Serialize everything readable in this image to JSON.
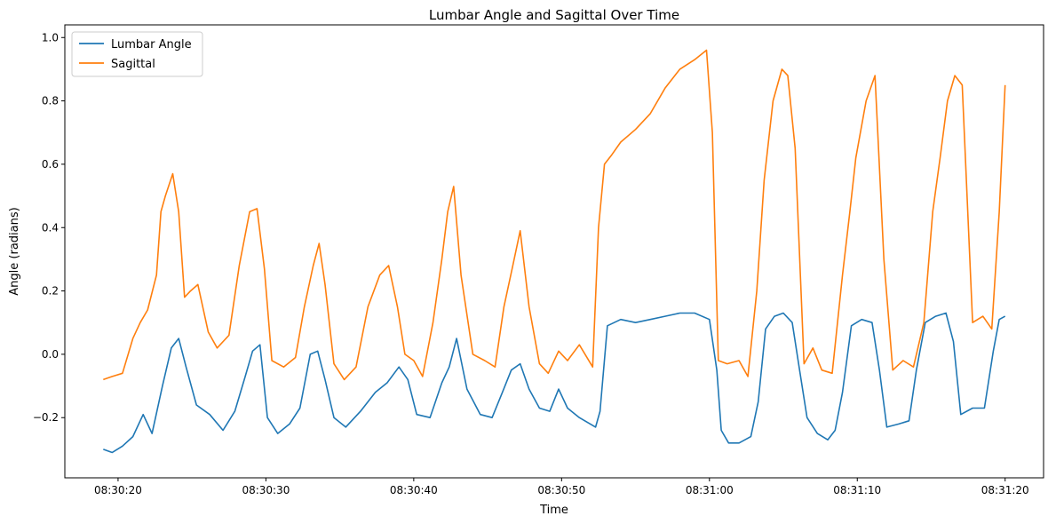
{
  "chart_data": {
    "type": "line",
    "title": "Lumbar Angle and Sagittal Over Time",
    "xlabel": "Time",
    "ylabel": "Angle (radians)",
    "xlim": [
      "08:30:16.4",
      "08:31:22.6"
    ],
    "ylim": [
      -0.39,
      1.04
    ],
    "grid": false,
    "legend_position": "top-left",
    "x_ticks": [
      "08:30:20",
      "08:30:30",
      "08:30:40",
      "08:30:50",
      "08:31:00",
      "08:31:10",
      "08:31:20"
    ],
    "y_ticks": [
      -0.2,
      0.0,
      0.2,
      0.4,
      0.6,
      0.8,
      1.0
    ],
    "y_tick_labels": [
      "−0.2",
      "0.0",
      "0.2",
      "0.4",
      "0.6",
      "0.8",
      "1.0"
    ],
    "series": [
      {
        "name": "Lumbar Angle",
        "color": "#1f77b4",
        "x": [
          "08:30:19.0",
          "08:30:19.6",
          "08:30:20.3",
          "08:30:21.0",
          "08:30:21.7",
          "08:30:22.3",
          "08:30:23.0",
          "08:30:23.6",
          "08:30:24.1",
          "08:30:24.6",
          "08:30:25.3",
          "08:30:26.2",
          "08:30:27.1",
          "08:30:27.9",
          "08:30:28.6",
          "08:30:29.1",
          "08:30:29.6",
          "08:30:30.1",
          "08:30:30.8",
          "08:30:31.6",
          "08:30:32.3",
          "08:30:33.0",
          "08:30:33.5",
          "08:30:34.0",
          "08:30:34.6",
          "08:30:35.4",
          "08:30:36.4",
          "08:30:37.4",
          "08:30:38.2",
          "08:30:39.0",
          "08:30:39.6",
          "08:30:40.2",
          "08:30:41.1",
          "08:30:41.9",
          "08:30:42.4",
          "08:30:42.9",
          "08:30:43.6",
          "08:30:44.5",
          "08:30:45.3",
          "08:30:46.0",
          "08:30:46.6",
          "08:30:47.2",
          "08:30:47.8",
          "08:30:48.5",
          "08:30:49.2",
          "08:30:49.8",
          "08:30:50.4",
          "08:30:51.2",
          "08:30:52.3",
          "08:30:52.6",
          "08:30:53.1",
          "08:30:54.0",
          "08:30:55.0",
          "08:30:56.0",
          "08:30:57.0",
          "08:30:58.0",
          "08:30:59.0",
          "08:31:00.0",
          "08:31:00.5",
          "08:31:00.8",
          "08:31:01.3",
          "08:31:02.0",
          "08:31:02.8",
          "08:31:03.3",
          "08:31:03.8",
          "08:31:04.4",
          "08:31:05.0",
          "08:31:05.6",
          "08:31:06.1",
          "08:31:06.6",
          "08:31:07.3",
          "08:31:08.0",
          "08:31:08.5",
          "08:31:09.0",
          "08:31:09.6",
          "08:31:10.3",
          "08:31:11.0",
          "08:31:11.5",
          "08:31:12.0",
          "08:31:12.8",
          "08:31:13.5",
          "08:31:14.0",
          "08:31:14.6",
          "08:31:15.3",
          "08:31:16.0",
          "08:31:16.5",
          "08:31:17.0",
          "08:31:17.8",
          "08:31:18.6",
          "08:31:19.2",
          "08:31:19.6",
          "08:31:20.0"
        ],
        "y": [
          -0.3,
          -0.31,
          -0.29,
          -0.26,
          -0.19,
          -0.25,
          -0.1,
          0.02,
          0.05,
          -0.04,
          -0.16,
          -0.19,
          -0.24,
          -0.18,
          -0.07,
          0.01,
          0.03,
          -0.2,
          -0.25,
          -0.22,
          -0.17,
          0.0,
          0.01,
          -0.08,
          -0.2,
          -0.23,
          -0.18,
          -0.12,
          -0.09,
          -0.04,
          -0.08,
          -0.19,
          -0.2,
          -0.09,
          -0.04,
          0.05,
          -0.11,
          -0.19,
          -0.2,
          -0.12,
          -0.05,
          -0.03,
          -0.11,
          -0.17,
          -0.18,
          -0.11,
          -0.17,
          -0.2,
          -0.23,
          -0.18,
          0.09,
          0.11,
          0.1,
          0.11,
          0.12,
          0.13,
          0.13,
          0.11,
          -0.05,
          -0.24,
          -0.28,
          -0.28,
          -0.26,
          -0.15,
          0.08,
          0.12,
          0.13,
          0.1,
          -0.05,
          -0.2,
          -0.25,
          -0.27,
          -0.24,
          -0.12,
          0.09,
          0.11,
          0.1,
          -0.05,
          -0.23,
          -0.22,
          -0.21,
          -0.05,
          0.1,
          0.12,
          0.13,
          0.04,
          -0.19,
          -0.17,
          -0.17,
          0.01,
          0.11,
          0.12
        ]
      },
      {
        "name": "Sagittal",
        "color": "#ff7f0e",
        "x": [
          "08:30:19.0",
          "08:30:19.6",
          "08:30:20.3",
          "08:30:21.0",
          "08:30:21.5",
          "08:30:22.0",
          "08:30:22.6",
          "08:30:22.9",
          "08:30:23.2",
          "08:30:23.7",
          "08:30:24.1",
          "08:30:24.5",
          "08:30:24.9",
          "08:30:25.4",
          "08:30:26.1",
          "08:30:26.7",
          "08:30:27.5",
          "08:30:28.2",
          "08:30:28.9",
          "08:30:29.4",
          "08:30:29.9",
          "08:30:30.4",
          "08:30:31.2",
          "08:30:32.0",
          "08:30:32.6",
          "08:30:33.2",
          "08:30:33.6",
          "08:30:34.0",
          "08:30:34.6",
          "08:30:35.3",
          "08:30:36.1",
          "08:30:36.9",
          "08:30:37.7",
          "08:30:38.3",
          "08:30:38.9",
          "08:30:39.4",
          "08:30:40.0",
          "08:30:40.6",
          "08:30:41.3",
          "08:30:41.9",
          "08:30:42.3",
          "08:30:42.7",
          "08:30:43.2",
          "08:30:44.0",
          "08:30:44.8",
          "08:30:45.5",
          "08:30:46.1",
          "08:30:46.7",
          "08:30:47.2",
          "08:30:47.8",
          "08:30:48.5",
          "08:30:49.1",
          "08:30:49.8",
          "08:30:50.4",
          "08:30:51.2",
          "08:30:52.1",
          "08:30:52.5",
          "08:30:52.9",
          "08:30:53.4",
          "08:30:54.0",
          "08:30:55.0",
          "08:30:56.0",
          "08:30:57.0",
          "08:30:58.0",
          "08:30:59.0",
          "08:30:59.8",
          "08:31:00.2",
          "08:31:00.6",
          "08:31:01.2",
          "08:31:02.0",
          "08:31:02.6",
          "08:31:03.2",
          "08:31:03.7",
          "08:31:04.3",
          "08:31:04.9",
          "08:31:05.3",
          "08:31:05.8",
          "08:31:06.4",
          "08:31:07.0",
          "08:31:07.6",
          "08:31:08.3",
          "08:31:09.0",
          "08:31:09.5",
          "08:31:09.9",
          "08:31:10.6",
          "08:31:11.2",
          "08:31:11.8",
          "08:31:12.4",
          "08:31:13.1",
          "08:31:13.8",
          "08:31:14.5",
          "08:31:15.1",
          "08:31:15.6",
          "08:31:16.1",
          "08:31:16.6",
          "08:31:17.1",
          "08:31:17.8",
          "08:31:18.5",
          "08:31:19.1",
          "08:31:19.6",
          "08:31:20.0"
        ],
        "y": [
          -0.08,
          -0.07,
          -0.06,
          0.05,
          0.1,
          0.14,
          0.25,
          0.45,
          0.5,
          0.57,
          0.45,
          0.18,
          0.2,
          0.22,
          0.07,
          0.02,
          0.06,
          0.28,
          0.45,
          0.46,
          0.27,
          -0.02,
          -0.04,
          -0.01,
          0.15,
          0.28,
          0.35,
          0.22,
          -0.03,
          -0.08,
          -0.04,
          0.15,
          0.25,
          0.28,
          0.15,
          0.0,
          -0.02,
          -0.07,
          0.1,
          0.3,
          0.45,
          0.53,
          0.25,
          0.0,
          -0.02,
          -0.04,
          0.15,
          0.28,
          0.39,
          0.15,
          -0.03,
          -0.06,
          0.01,
          -0.02,
          0.03,
          -0.04,
          0.4,
          0.6,
          0.63,
          0.67,
          0.71,
          0.76,
          0.84,
          0.9,
          0.93,
          0.96,
          0.7,
          -0.02,
          -0.03,
          -0.02,
          -0.07,
          0.2,
          0.55,
          0.8,
          0.9,
          0.88,
          0.65,
          -0.03,
          0.02,
          -0.05,
          -0.06,
          0.25,
          0.45,
          0.62,
          0.8,
          0.88,
          0.3,
          -0.05,
          -0.02,
          -0.04,
          0.1,
          0.45,
          0.62,
          0.8,
          0.88,
          0.85,
          0.1,
          0.12,
          0.08,
          0.45,
          0.85
        ]
      }
    ]
  }
}
